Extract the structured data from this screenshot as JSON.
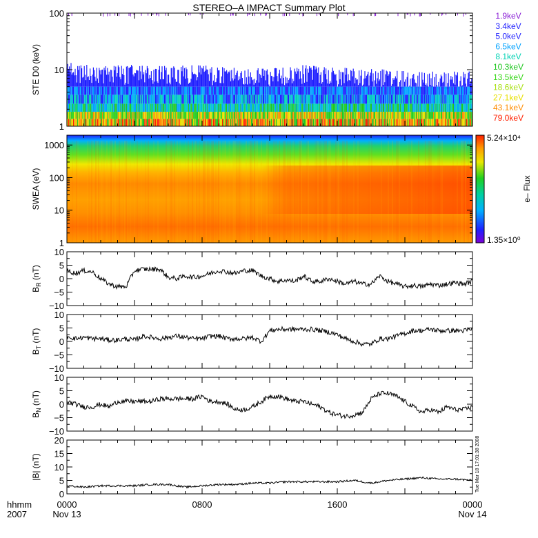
{
  "title": "STEREO–A IMPACT Summary Plot",
  "time_axis": {
    "row1_label": "hhmm",
    "row2_label": "2007",
    "ticks": [
      {
        "hours": 0,
        "time": "0000",
        "date": "Nov 13"
      },
      {
        "hours": 8,
        "time": "0800",
        "date": ""
      },
      {
        "hours": 16,
        "time": "1600",
        "date": ""
      },
      {
        "hours": 24,
        "time": "0000",
        "date": "Nov 14"
      }
    ]
  },
  "timestamp_note": "Tue Mar 18 17:01:38 2008",
  "panels": {
    "ste": {
      "ylabel": "STE D0 (keV)",
      "scale": "log",
      "ylim": [
        1,
        100
      ],
      "yticks": [
        {
          "v": 1,
          "t": "1"
        },
        {
          "v": 10,
          "t": "10"
        },
        {
          "v": 100,
          "t": "100"
        }
      ],
      "channels": [
        {
          "label": "1.9keV",
          "color": "#8a1fd6"
        },
        {
          "label": "3.4keV",
          "color": "#2323ff"
        },
        {
          "label": "5.0keV",
          "color": "#1f1fff"
        },
        {
          "label": "6.5keV",
          "color": "#00a2ff"
        },
        {
          "label": "8.1keV",
          "color": "#00d2b4"
        },
        {
          "label": "10.3keV",
          "color": "#1fc71f"
        },
        {
          "label": "13.5keV",
          "color": "#3bd81c"
        },
        {
          "label": "18.6keV",
          "color": "#a8e010"
        },
        {
          "label": "27.1keV",
          "color": "#e8e000"
        },
        {
          "label": "43.1keV",
          "color": "#ff8c00"
        },
        {
          "label": "79.0keV",
          "color": "#ff2000"
        }
      ]
    },
    "swea": {
      "ylabel": "SWEA (eV)",
      "scale": "log",
      "ylim": [
        1,
        2000
      ],
      "yticks": [
        {
          "v": 1,
          "t": "1"
        },
        {
          "v": 10,
          "t": "10"
        },
        {
          "v": 100,
          "t": "100"
        },
        {
          "v": 1000,
          "t": "1000"
        }
      ],
      "colorbar": {
        "label": "e– Flux",
        "max": "5.24×10⁴",
        "min": "1.35×10⁰"
      }
    },
    "br": {
      "ylabel": "BR (nT)",
      "ylim": [
        -10,
        10
      ],
      "yticks": [
        "10",
        "5",
        "0",
        "−5",
        "−10"
      ]
    },
    "bt": {
      "ylabel": "BT (nT)",
      "ylim": [
        -10,
        10
      ],
      "yticks": [
        "10",
        "5",
        "0",
        "−5",
        "−10"
      ]
    },
    "bn": {
      "ylabel": "BN (nT)",
      "ylim": [
        -10,
        10
      ],
      "yticks": [
        "10",
        "5",
        "0",
        "−5",
        "−10"
      ]
    },
    "bmag": {
      "ylabel": "|B| (nT)",
      "ylim": [
        0,
        20
      ],
      "yticks": [
        "20",
        "15",
        "10",
        "5",
        "0"
      ]
    }
  },
  "chart_data": [
    {
      "type": "line",
      "title": "STEREO–A IMPACT Summary Plot",
      "ylabel": "STE D0 (keV)",
      "x_hours": [
        0,
        2,
        4,
        6,
        8,
        10,
        12,
        14,
        16,
        18,
        20,
        22,
        24
      ],
      "series_top_envelope": [
        10,
        9,
        9,
        9,
        9,
        8,
        8,
        9,
        8,
        8,
        7,
        7,
        7
      ],
      "legend": [
        "1.9keV",
        "3.4keV",
        "5.0keV",
        "6.5keV",
        "8.1keV",
        "10.3keV",
        "13.5keV",
        "18.6keV",
        "27.1keV",
        "43.1keV",
        "79.0keV"
      ]
    },
    {
      "type": "heatmap",
      "ylabel": "SWEA (eV)",
      "colorbar_range": [
        "1.35×10⁰",
        "5.24×10⁴"
      ]
    },
    {
      "type": "line",
      "ylabel": "BR (nT)",
      "ylim": [
        -10,
        10
      ],
      "x": [
        0,
        0.5,
        1,
        1.5,
        2,
        2.5,
        3,
        3.5,
        4,
        4.5,
        5,
        5.5,
        6,
        6.5,
        7,
        7.5,
        8,
        8.5,
        9,
        9.5,
        10,
        10.5,
        11,
        11.5,
        12,
        12.5,
        13,
        13.5,
        14,
        14.5,
        15,
        15.5,
        16,
        16.5,
        17,
        17.5,
        18,
        18.5,
        19,
        19.5,
        20,
        20.5,
        21,
        21.5,
        22,
        22.5,
        23,
        23.5,
        24
      ],
      "y": [
        3,
        2,
        3,
        2.5,
        0,
        -2,
        -3,
        -3,
        3,
        3.5,
        3.5,
        3.5,
        0.5,
        0,
        1,
        0.5,
        1,
        2,
        3,
        2.5,
        2,
        3,
        3,
        1,
        0,
        -1,
        -0.5,
        -1,
        1,
        -1,
        -1,
        0,
        -1,
        -2,
        -1,
        -2,
        -2,
        1,
        -1,
        -2,
        -3,
        -2.5,
        -3,
        -2,
        -2.5,
        -2,
        -1.5,
        -2,
        -1
      ]
    },
    {
      "type": "line",
      "ylabel": "BT (nT)",
      "ylim": [
        -10,
        10
      ],
      "x": [
        0,
        0.5,
        1,
        1.5,
        2,
        2.5,
        3,
        3.5,
        4,
        4.5,
        5,
        5.5,
        6,
        6.5,
        7,
        7.5,
        8,
        8.5,
        9,
        9.5,
        10,
        10.5,
        11,
        11.5,
        12,
        12.5,
        13,
        13.5,
        14,
        14.5,
        15,
        15.5,
        16,
        16.5,
        17,
        17.5,
        18,
        18.5,
        19,
        19.5,
        20,
        20.5,
        21,
        21.5,
        22,
        22.5,
        23,
        23.5,
        24
      ],
      "y": [
        2,
        1,
        1.5,
        1,
        1,
        0.5,
        0.5,
        1,
        0.5,
        2,
        1.5,
        1,
        1.5,
        2,
        1.5,
        1,
        1,
        2,
        2,
        1,
        1,
        1,
        1.5,
        0,
        4,
        4.5,
        4.5,
        4.5,
        4.5,
        4.5,
        4,
        3.5,
        2.5,
        1,
        0,
        -1,
        -1,
        1,
        1,
        2,
        3,
        4,
        4,
        4.5,
        4,
        4,
        4,
        4,
        4.5
      ]
    },
    {
      "type": "line",
      "ylabel": "BN (nT)",
      "ylim": [
        -10,
        10
      ],
      "x": [
        0,
        0.5,
        1,
        1.5,
        2,
        2.5,
        3,
        3.5,
        4,
        4.5,
        5,
        5.5,
        6,
        6.5,
        7,
        7.5,
        8,
        8.5,
        9,
        9.5,
        10,
        10.5,
        11,
        11.5,
        12,
        12.5,
        13,
        13.5,
        14,
        14.5,
        15,
        15.5,
        16,
        16.5,
        17,
        17.5,
        18,
        18.5,
        19,
        19.5,
        20,
        20.5,
        21,
        21.5,
        22,
        22.5,
        23,
        23.5,
        24
      ],
      "y": [
        1,
        0,
        -1,
        -1,
        0,
        -1,
        1,
        1,
        1,
        1,
        1,
        2,
        2,
        2,
        2,
        2,
        3,
        1,
        1,
        0,
        -2,
        -2,
        -1,
        1,
        3,
        3,
        2,
        1,
        1,
        0,
        -1,
        -3,
        -4,
        -4.5,
        -4,
        -3,
        2,
        4,
        4,
        3,
        1,
        -1,
        -3,
        -2,
        -3,
        -1,
        -2,
        -2,
        -1
      ]
    },
    {
      "type": "line",
      "ylabel": "|B| (nT)",
      "ylim": [
        0,
        20
      ],
      "x": [
        0,
        1,
        2,
        3,
        4,
        5,
        6,
        7,
        8,
        9,
        10,
        11,
        12,
        13,
        14,
        15,
        16,
        17,
        18,
        19,
        20,
        21,
        22,
        23,
        24
      ],
      "y": [
        3,
        2.5,
        3,
        3,
        3,
        3.5,
        3.5,
        2.5,
        3,
        3.5,
        3.5,
        4,
        4,
        4.5,
        4.5,
        4.5,
        4.5,
        5,
        4,
        5,
        5.5,
        6,
        5.5,
        5.5,
        5
      ]
    }
  ]
}
